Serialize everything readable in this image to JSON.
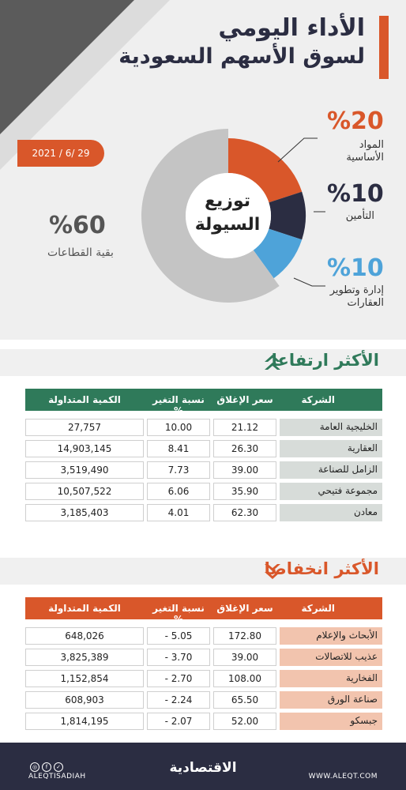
{
  "header": {
    "title_line1": "الأداء اليومي",
    "title_line2": "لسوق الأسهم السعودية",
    "date": "2021 / 6/ 29"
  },
  "liquidity": {
    "center_line1": "توزيع",
    "center_line2": "السيولة",
    "segments": [
      {
        "pct": "%20",
        "label_line1": "المواد",
        "label_line2": "الأساسية",
        "value": 20,
        "color": "#d9572a"
      },
      {
        "pct": "%10",
        "label_line1": "التأمين",
        "label_line2": "",
        "value": 10,
        "color": "#2b2d42"
      },
      {
        "pct": "%10",
        "label_line1": "إدارة وتطوير",
        "label_line2": "العقارات",
        "value": 10,
        "color": "#4ea3d9"
      },
      {
        "pct": "%60",
        "label_line1": "بقية القطاعات",
        "label_line2": "",
        "value": 60,
        "color": "#c4c4c4"
      }
    ]
  },
  "gainers": {
    "title": "الأكثر ارتفاعا",
    "color": "#2f7a5a",
    "headers": {
      "company": "الشركة",
      "close": "سعر الإغلاق",
      "change": "نسبة التغير %",
      "volume": "الكمية المتداولة"
    },
    "rows": [
      {
        "company": "الخليجية العامة",
        "close": "21.12",
        "change": "10.00",
        "volume": "27,757"
      },
      {
        "company": "العقارية",
        "close": "26.30",
        "change": "8.41",
        "volume": "14,903,145"
      },
      {
        "company": "الزامل للصناعة",
        "close": "39.00",
        "change": "7.73",
        "volume": "3,519,490"
      },
      {
        "company": "مجموعة فتيحي",
        "close": "35.90",
        "change": "6.06",
        "volume": "10,507,522"
      },
      {
        "company": "معادن",
        "close": "62.30",
        "change": "4.01",
        "volume": "3,185,403"
      }
    ]
  },
  "losers": {
    "title": "الأكثر انخفاضا",
    "color": "#d9572a",
    "headers": {
      "company": "الشركة",
      "close": "سعر الإغلاق",
      "change": "نسبة التغير %",
      "volume": "الكمية المتداولة"
    },
    "rows": [
      {
        "company": "الأبحاث والإعلام",
        "close": "172.80",
        "change": "- 5.05",
        "volume": "648,026"
      },
      {
        "company": "عذيب للاتصالات",
        "close": "39.00",
        "change": "- 3.70",
        "volume": "3,825,389"
      },
      {
        "company": "الفخارية",
        "close": "108.00",
        "change": "- 2.70",
        "volume": "1,152,854"
      },
      {
        "company": "صناعة الورق",
        "close": "65.50",
        "change": "- 2.24",
        "volume": "608,903"
      },
      {
        "company": "جبسكو",
        "close": "52.00",
        "change": "- 2.07",
        "volume": "1,814,195"
      }
    ]
  },
  "footer": {
    "handle": "ALEQTISADIAH",
    "logo": "الاقتصادية",
    "website": "WWW.ALEQT.COM"
  }
}
